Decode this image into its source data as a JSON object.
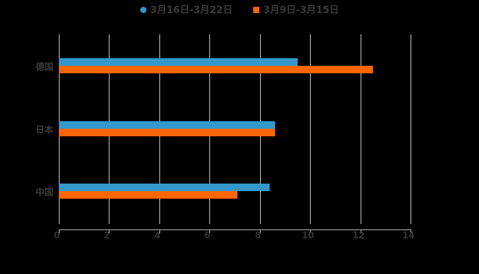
{
  "chart_data": {
    "type": "bar",
    "orientation": "horizontal",
    "title": "",
    "categories": [
      "中国",
      "日本",
      "德国"
    ],
    "series": [
      {
        "name": "3月16日-3月22日",
        "color": "#3399CC",
        "values": [
          8.4,
          8.6,
          9.5
        ]
      },
      {
        "name": "3月9日-3月15日",
        "color": "#FF6600",
        "values": [
          7.1,
          8.6,
          12.5
        ]
      }
    ],
    "xlabel": "",
    "ylabel": "",
    "xlim": [
      0,
      14
    ],
    "xticks": [
      "0",
      "2",
      "4",
      "6",
      "8",
      "10",
      "12",
      "14"
    ],
    "grid": true,
    "legend_position": "top",
    "background": "#000000"
  },
  "legend": {
    "items": [
      {
        "label": "3月16日-3月22日",
        "color": "#3399CC",
        "shape": "circle"
      },
      {
        "label": "3月9日-3月15日",
        "color": "#FF6600",
        "shape": "square"
      }
    ]
  }
}
